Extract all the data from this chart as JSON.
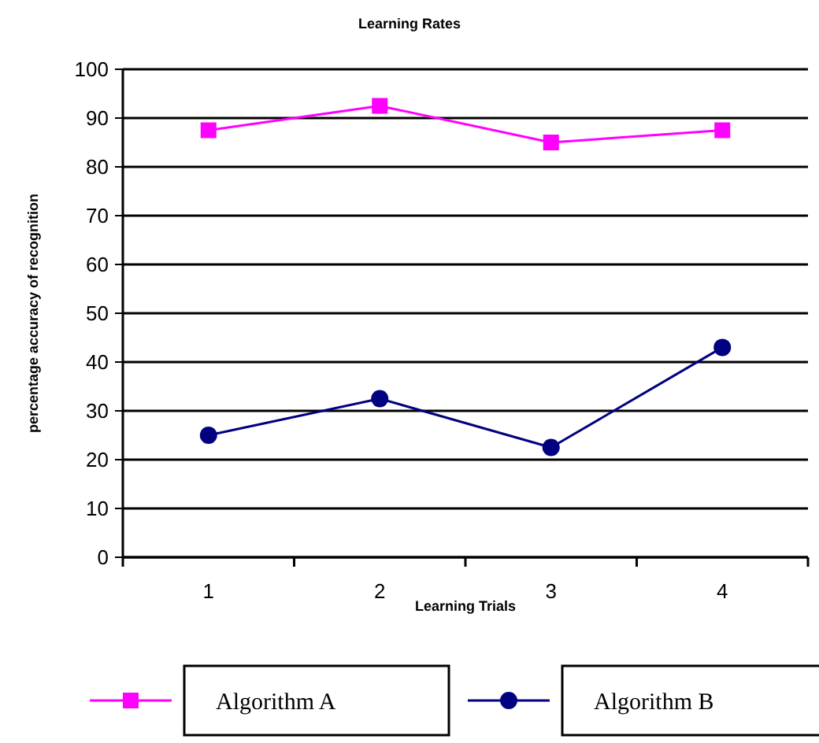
{
  "chart_data": {
    "type": "line",
    "title": "Learning Rates",
    "xlabel": "Learning Trials",
    "ylabel": "percentage accuracy of recognition",
    "categories": [
      "1",
      "2",
      "3",
      "4"
    ],
    "series": [
      {
        "name": "Algorithm A",
        "color": "#ff00ff",
        "marker": "square",
        "values": [
          87.5,
          92.5,
          85,
          87.5
        ]
      },
      {
        "name": "Algorithm B",
        "color": "#000080",
        "marker": "circle",
        "values": [
          25,
          32.5,
          22.5,
          43
        ]
      }
    ],
    "ylim": [
      0,
      100
    ],
    "yticks": [
      0,
      10,
      20,
      30,
      40,
      50,
      60,
      70,
      80,
      90,
      100
    ],
    "grid": "y",
    "legend": "bottom",
    "line_style": "solid"
  }
}
